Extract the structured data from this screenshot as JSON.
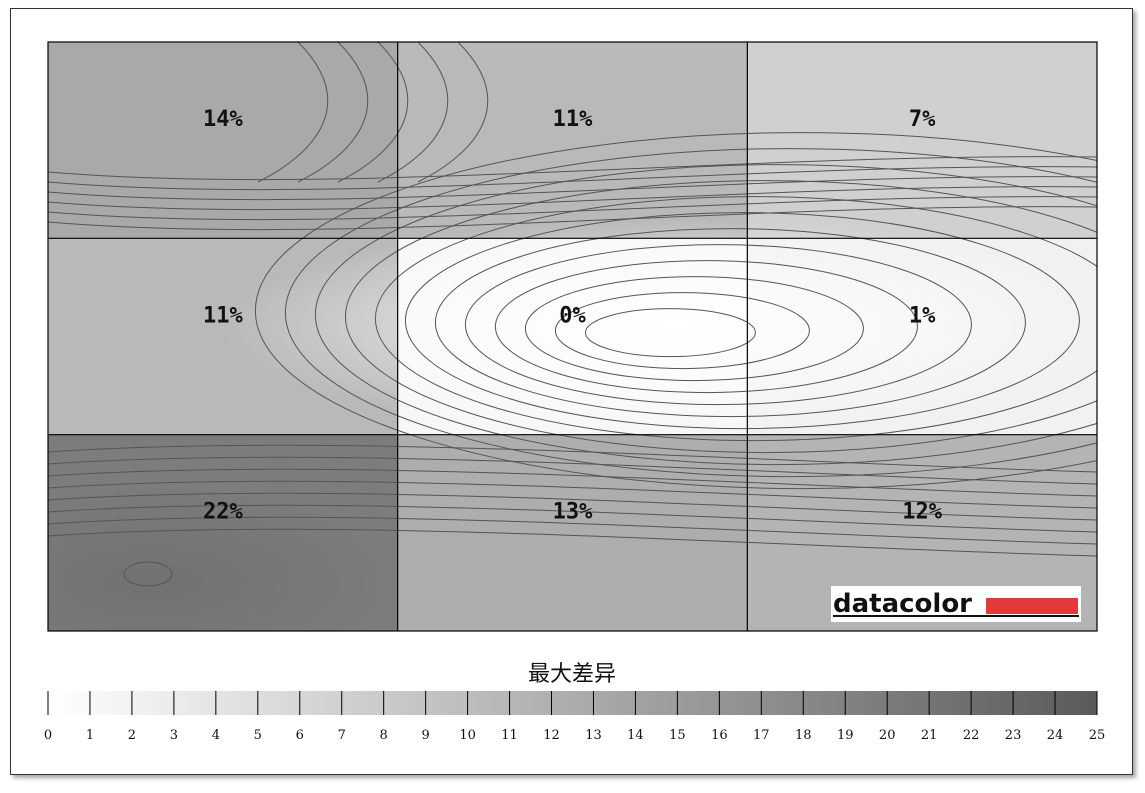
{
  "chart_data": {
    "type": "heatmap",
    "grid": {
      "rows": 3,
      "cols": 3
    },
    "cells": [
      [
        "14%",
        "11%",
        "7%"
      ],
      [
        "11%",
        "0%",
        "1%"
      ],
      [
        "22%",
        "13%",
        "12%"
      ]
    ],
    "values": [
      [
        14,
        11,
        7
      ],
      [
        11,
        0,
        1
      ],
      [
        22,
        13,
        12
      ]
    ],
    "legend_title": "最大差异",
    "scale_ticks": [
      "0",
      "1",
      "2",
      "3",
      "4",
      "5",
      "6",
      "7",
      "8",
      "9",
      "10",
      "11",
      "12",
      "13",
      "14",
      "15",
      "16",
      "17",
      "18",
      "19",
      "20",
      "21",
      "22",
      "23",
      "24",
      "25"
    ],
    "scale_range": [
      0,
      25
    ],
    "grid_lines": true,
    "colors": {
      "min": "#ffffff",
      "max": "#5a5a5a",
      "brand_bar": "#e03a3a"
    }
  },
  "brand": {
    "name": "datacolor"
  }
}
